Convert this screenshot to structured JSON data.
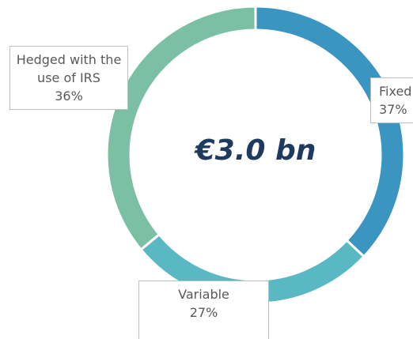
{
  "chart_data": {
    "type": "donut",
    "center_text": "€3.0 bn",
    "categories": [
      "Fixed",
      "Variable",
      "Hedged with the use of IRS"
    ],
    "values": [
      37,
      27,
      36
    ],
    "value_labels": [
      "37%",
      "27%",
      "36%"
    ],
    "colors": [
      "#3a96c0",
      "#5ab8c3",
      "#7bbfa5"
    ]
  }
}
